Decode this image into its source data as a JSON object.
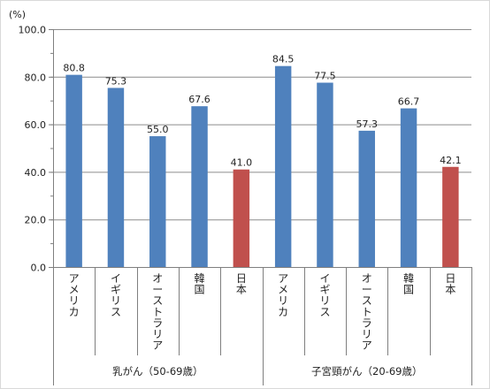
{
  "chart_data": {
    "type": "bar",
    "unit_label": "(%)",
    "ylim": [
      0,
      100
    ],
    "yticks": [
      "0.0",
      "20.0",
      "40.0",
      "60.0",
      "80.0",
      "100.0"
    ],
    "ytick_values": [
      0,
      20,
      40,
      60,
      80,
      100
    ],
    "minor_tick_step": 10,
    "grid": true,
    "colors": {
      "default": "#4f81bd",
      "highlight": "#c0504d",
      "grid": "#8c8c8c",
      "axis": "#7f7f7f"
    },
    "groups": [
      {
        "label": "乳がん（50-69歳）",
        "categories": [
          "アメリカ",
          "イギリス",
          "オーストラリア",
          "韓国",
          "日本"
        ],
        "values": [
          80.8,
          75.3,
          55.0,
          67.6,
          41.0
        ],
        "value_labels": [
          "80.8",
          "75.3",
          "55.0",
          "67.6",
          "41.0"
        ],
        "highlight_index": 4
      },
      {
        "label": "子宮頸がん（20-69歳）",
        "categories": [
          "アメリカ",
          "イギリス",
          "オーストラリア",
          "韓国",
          "日本"
        ],
        "values": [
          84.5,
          77.5,
          57.3,
          66.7,
          42.1
        ],
        "value_labels": [
          "84.5",
          "77.5",
          "57.3",
          "66.7",
          "42.1"
        ],
        "highlight_index": 4
      }
    ]
  }
}
